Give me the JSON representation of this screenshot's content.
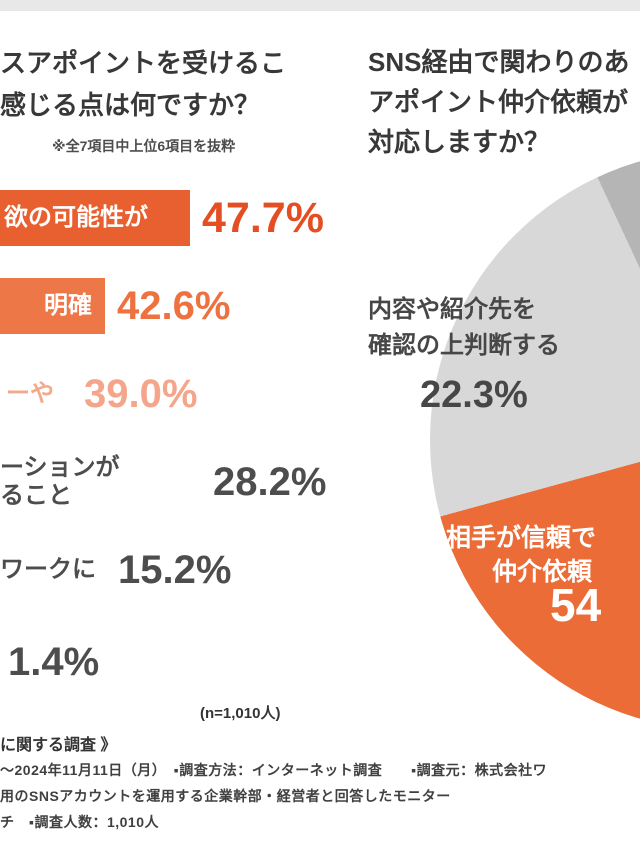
{
  "colors": {
    "bar1": "#e8602f",
    "bar2": "#ee7747",
    "bar3": "#f5a98c",
    "gray_text": "#4d4d4d",
    "pie_orange": "#eb6c36",
    "pie_light_gray": "#d8d8d8",
    "pie_dark_gray": "#b5b5b5",
    "top_strip": "#e8e8e8"
  },
  "left_panel": {
    "title_lines": [
      "スアポイントを受けるこ",
      "感じる点は何ですか？"
    ],
    "note": "※全7項目中上位6項目を抜粋",
    "n_note": "(n=1,010人)",
    "bars": [
      {
        "label": "欲の可能性が",
        "pct": "47.7%"
      },
      {
        "label": "明確",
        "pct": "42.6%"
      },
      {
        "label": "ーや",
        "pct": "39.0%"
      },
      {
        "label_line1": "ーションが",
        "label_line2": "ること",
        "pct": "28.2%"
      },
      {
        "label": "ワークに",
        "pct": "15.2%"
      },
      {
        "pct": "1.4%"
      }
    ]
  },
  "right_panel": {
    "title_lines": [
      "SNS経由で関わりのあ",
      "アポイント仲介依頼が",
      "対応しますか？"
    ],
    "pie_labels": {
      "gray_line1": "内容や紹介先を",
      "gray_line2": "確認の上判断する",
      "gray_pct": "22.3%",
      "orange_line1": "相手が信頼で",
      "orange_line2": "仲介依頼",
      "orange_pct": "54"
    }
  },
  "footer": {
    "survey_title": "に関する調査 》",
    "line1": "〜2024年11月11日（月）　▪調査方法：インターネット調査　　▪調査元：株式会社ワ",
    "line2": "用のSNSアカウントを運用する企業幹部・経営者と回答したモニター",
    "line3": "チ　▪調査人数：1,010人"
  },
  "chart_data": [
    {
      "type": "bar",
      "orientation": "horizontal",
      "title": "スアポイントを受けるこ 感じる点は何ですか？",
      "subtitle": "※全7項目中上位6項目を抜粋",
      "categories": [
        "欲の可能性が",
        "明確",
        "ーや",
        "ーションが ること",
        "ワークに",
        ""
      ],
      "values": [
        47.7,
        42.6,
        39.0,
        28.2,
        15.2,
        1.4
      ],
      "unit": "%",
      "sample": "n=1,010人",
      "bar_colors": [
        "#e8602f",
        "#ee7747",
        "#f5a98c",
        "#4d4d4d",
        "#4d4d4d",
        "#4d4d4d"
      ],
      "note": "bars cropped at left edge of image"
    },
    {
      "type": "pie",
      "title": "SNS経由で関わりのあ アポイント仲介依頼が 対応しますか？",
      "segments": [
        {
          "label": "相手が信頼で 仲介依頼",
          "value_display": "54",
          "value": 54.5,
          "color": "#eb6c36"
        },
        {
          "label": "内容や紹介先を確認の上判断する",
          "value_display": "22.3%",
          "value": 22.3,
          "color": "#d8d8d8"
        },
        {
          "label": "",
          "value_display": "",
          "value": 23.2,
          "color": "#b5b5b5"
        }
      ],
      "legend_position": "none",
      "note": "pie cropped at right edge of image; third segment label off-screen"
    }
  ]
}
